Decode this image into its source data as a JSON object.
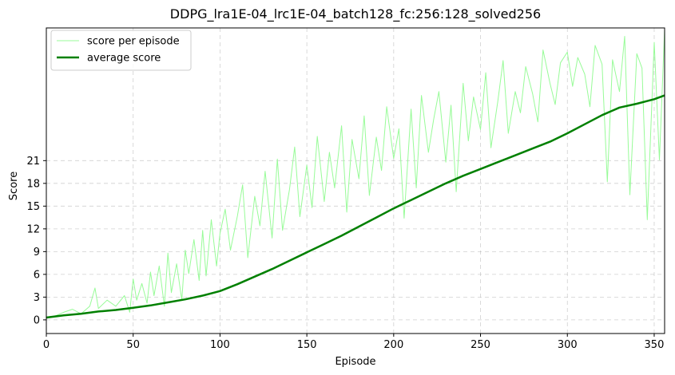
{
  "chart_data": {
    "type": "line",
    "title": "DDPG_lra1E-04_lrc1E-04_batch128_fc:256:128_solved256",
    "xlabel": "Episode",
    "ylabel": "Score",
    "xlim": [
      0,
      356
    ],
    "ylim": [
      -1.8,
      38.5
    ],
    "x_ticks": [
      0,
      50,
      100,
      150,
      200,
      250,
      300,
      350
    ],
    "y_ticks": [
      0,
      3,
      6,
      9,
      12,
      15,
      18,
      21
    ],
    "grid": true,
    "legend_position": "top-left",
    "series": [
      {
        "name": "score per episode",
        "color": "#98fb98",
        "x": [
          0,
          5,
          10,
          15,
          20,
          25,
          28,
          30,
          35,
          40,
          45,
          48,
          50,
          52,
          55,
          58,
          60,
          62,
          65,
          68,
          70,
          72,
          75,
          78,
          80,
          82,
          85,
          88,
          90,
          92,
          95,
          98,
          100,
          103,
          106,
          110,
          113,
          116,
          120,
          123,
          126,
          130,
          133,
          136,
          140,
          143,
          146,
          150,
          153,
          156,
          160,
          163,
          166,
          170,
          173,
          176,
          180,
          183,
          186,
          190,
          193,
          196,
          200,
          203,
          206,
          210,
          213,
          216,
          220,
          223,
          226,
          230,
          233,
          236,
          240,
          243,
          246,
          250,
          253,
          256,
          260,
          263,
          266,
          270,
          273,
          276,
          280,
          283,
          286,
          290,
          293,
          296,
          300,
          303,
          306,
          310,
          313,
          316,
          320,
          323,
          326,
          330,
          333,
          336,
          340,
          343,
          346,
          350,
          353,
          356
        ],
        "values": [
          0.2,
          0.5,
          1.0,
          1.4,
          0.8,
          1.8,
          4.2,
          1.5,
          2.6,
          1.8,
          3.2,
          1.0,
          5.4,
          2.6,
          4.8,
          2.2,
          6.3,
          3.2,
          7.1,
          1.8,
          8.8,
          3.6,
          7.4,
          2.6,
          9.2,
          6.1,
          10.6,
          5.2,
          11.8,
          5.8,
          13.2,
          7.1,
          11.4,
          14.6,
          9.2,
          13.7,
          17.8,
          8.2,
          16.3,
          12.4,
          19.6,
          10.8,
          21.2,
          11.8,
          17.2,
          22.8,
          13.6,
          20.4,
          14.8,
          24.2,
          15.6,
          22.1,
          17.4,
          25.6,
          14.2,
          23.8,
          18.6,
          26.9,
          16.4,
          24.1,
          19.7,
          28.1,
          21.3,
          25.2,
          13.4,
          27.8,
          17.4,
          29.6,
          22.1,
          26.4,
          30.1,
          20.8,
          28.3,
          16.9,
          31.2,
          23.6,
          29.4,
          25.1,
          32.6,
          22.7,
          28.9,
          34.2,
          24.6,
          30.1,
          27.3,
          33.4,
          29.8,
          26.1,
          35.6,
          31.2,
          28.4,
          33.9,
          35.3,
          30.8,
          34.6,
          32.4,
          28.1,
          36.2,
          33.7,
          18.2,
          34.3,
          30.1,
          37.4,
          16.5,
          35.1,
          33.2,
          13.2,
          36.6,
          21.1,
          38.3
        ]
      },
      {
        "name": "average score",
        "color": "#008000",
        "x": [
          0,
          10,
          20,
          30,
          40,
          50,
          60,
          70,
          80,
          90,
          100,
          110,
          120,
          130,
          140,
          150,
          160,
          170,
          180,
          190,
          200,
          210,
          220,
          230,
          240,
          250,
          260,
          270,
          280,
          290,
          300,
          310,
          320,
          330,
          340,
          350,
          356
        ],
        "values": [
          0.3,
          0.6,
          0.8,
          1.1,
          1.3,
          1.6,
          1.9,
          2.3,
          2.7,
          3.2,
          3.8,
          4.7,
          5.7,
          6.7,
          7.8,
          8.9,
          10.0,
          11.1,
          12.3,
          13.5,
          14.7,
          15.8,
          16.9,
          18.0,
          19.0,
          19.9,
          20.8,
          21.7,
          22.6,
          23.5,
          24.6,
          25.8,
          27.0,
          28.0,
          28.5,
          29.1,
          29.6
        ]
      }
    ]
  }
}
